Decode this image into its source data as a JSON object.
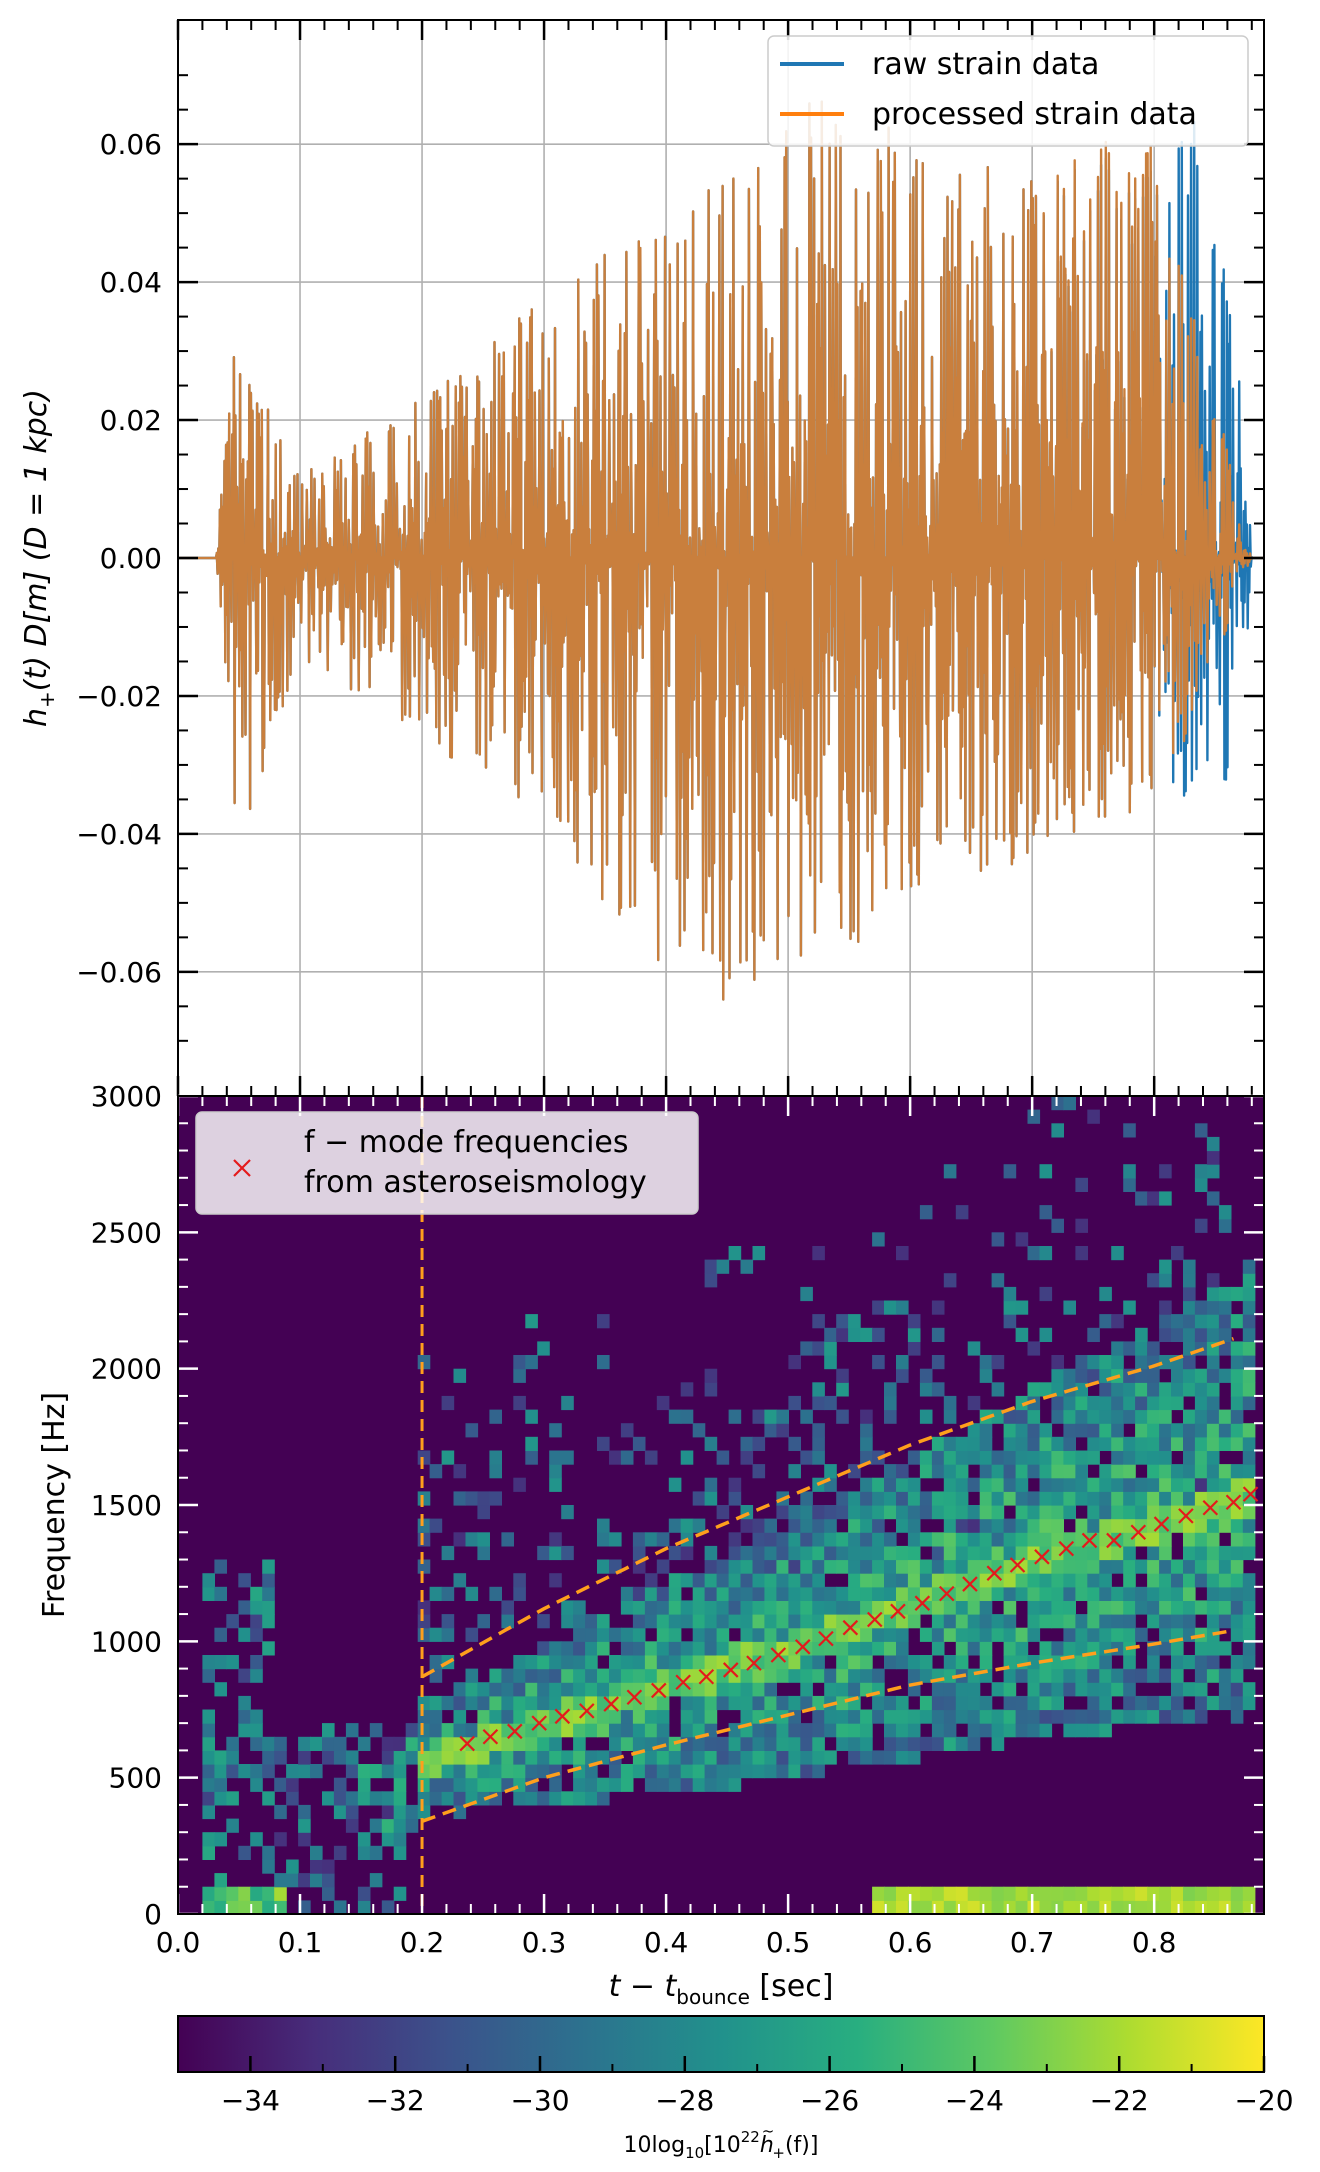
{
  "chart_data": [
    {
      "type": "line",
      "ylabel": "h_+(t) D[m]  (D = 1 kpc)",
      "ylabel_parts": {
        "main": "h",
        "sub": "+",
        "rest1": "(t) D[m]  (D = 1 kpc)"
      },
      "xlim": [
        0.0,
        0.89
      ],
      "ylim": [
        -0.078,
        0.078
      ],
      "yticks": [
        -0.06,
        -0.04,
        -0.02,
        0.0,
        0.02,
        0.04,
        0.06
      ],
      "ytick_labels": [
        "−0.06",
        "−0.04",
        "−0.02",
        "0.00",
        "0.02",
        "0.04",
        "0.06"
      ],
      "grid": true,
      "legend_position": "top-right",
      "series": [
        {
          "name": "raw strain data",
          "color": "#1f77b4",
          "envelope": {
            "t": [
              0.0,
              0.03,
              0.04,
              0.05,
              0.06,
              0.1,
              0.2,
              0.3,
              0.4,
              0.45,
              0.5,
              0.55,
              0.6,
              0.7,
              0.8,
              0.84,
              0.86,
              0.87,
              0.875,
              0.88,
              0.89
            ],
            "upper": [
              0.0,
              0.0,
              0.02,
              0.036,
              0.028,
              0.012,
              0.024,
              0.038,
              0.05,
              0.058,
              0.07,
              0.065,
              0.062,
              0.055,
              0.06,
              0.066,
              0.038,
              0.028,
              0.018,
              0.0,
              0.0
            ],
            "lower": [
              0.0,
              0.0,
              -0.02,
              -0.048,
              -0.036,
              -0.015,
              -0.026,
              -0.04,
              -0.06,
              -0.066,
              -0.06,
              -0.058,
              -0.048,
              -0.044,
              -0.036,
              -0.036,
              -0.032,
              -0.026,
              -0.018,
              0.0,
              0.0
            ]
          }
        },
        {
          "name": "processed strain data",
          "color": "#ff7f0e",
          "envelope": {
            "t": [
              0.0,
              0.03,
              0.04,
              0.05,
              0.06,
              0.1,
              0.2,
              0.3,
              0.4,
              0.45,
              0.5,
              0.55,
              0.6,
              0.7,
              0.8,
              0.82,
              0.84,
              0.86,
              0.87,
              0.88,
              0.89
            ],
            "upper": [
              0.0,
              0.0,
              0.02,
              0.036,
              0.028,
              0.012,
              0.024,
              0.038,
              0.05,
              0.058,
              0.07,
              0.065,
              0.062,
              0.055,
              0.064,
              0.045,
              0.03,
              0.016,
              0.005,
              0.0,
              0.0
            ],
            "lower": [
              0.0,
              0.0,
              -0.02,
              -0.048,
              -0.036,
              -0.015,
              -0.026,
              -0.04,
              -0.06,
              -0.066,
              -0.06,
              -0.058,
              -0.048,
              -0.044,
              -0.036,
              -0.03,
              -0.02,
              -0.01,
              -0.004,
              0.0,
              0.0
            ]
          }
        }
      ]
    },
    {
      "type": "heatmap",
      "xlabel": "t − t_bounce [sec]",
      "xlabel_parts": {
        "main": "t − t",
        "sub": "bounce",
        "rest": " [sec]"
      },
      "ylabel": "Frequency [Hz]",
      "xlim": [
        0.0,
        0.89
      ],
      "ylim": [
        0,
        3000
      ],
      "xticks": [
        0.0,
        0.1,
        0.2,
        0.3,
        0.4,
        0.5,
        0.6,
        0.7,
        0.8
      ],
      "xtick_labels": [
        "0.0",
        "0.1",
        "0.2",
        "0.3",
        "0.4",
        "0.5",
        "0.6",
        "0.7",
        "0.8"
      ],
      "yticks": [
        0,
        500,
        1000,
        1500,
        2000,
        2500,
        3000
      ],
      "ytick_labels": [
        "0",
        "500",
        "1000",
        "1500",
        "2000",
        "2500",
        "3000"
      ],
      "colormap": "viridis",
      "color_range": [
        -35,
        -20
      ],
      "background_level": -35,
      "legend_position": "top-left",
      "legend_label_lines": [
        "f − mode frequencies",
        "from asteroseismology"
      ],
      "bounce_line_t": 0.2,
      "bounce_line_color": "#ff9f1c",
      "upper_band": {
        "t": [
          0.2,
          0.3,
          0.4,
          0.5,
          0.6,
          0.7,
          0.8,
          0.865
        ],
        "f": [
          870,
          1120,
          1340,
          1530,
          1720,
          1880,
          2010,
          2110
        ]
      },
      "lower_band": {
        "t": [
          0.2,
          0.3,
          0.4,
          0.5,
          0.6,
          0.7,
          0.8,
          0.865
        ],
        "f": [
          340,
          500,
          620,
          730,
          840,
          920,
          990,
          1040
        ]
      },
      "fmode_points": {
        "name": "f − mode frequencies from asteroseismology",
        "color": "#e41a1c",
        "t": [
          0.237,
          0.256,
          0.276,
          0.296,
          0.315,
          0.335,
          0.355,
          0.374,
          0.394,
          0.414,
          0.433,
          0.453,
          0.472,
          0.492,
          0.512,
          0.531,
          0.551,
          0.571,
          0.59,
          0.61,
          0.63,
          0.649,
          0.669,
          0.688,
          0.708,
          0.728,
          0.747,
          0.767,
          0.787,
          0.806,
          0.826,
          0.846,
          0.865,
          0.879
        ],
        "f": [
          625,
          650,
          670,
          700,
          725,
          745,
          770,
          795,
          820,
          850,
          870,
          895,
          920,
          950,
          980,
          1010,
          1050,
          1080,
          1110,
          1140,
          1175,
          1210,
          1250,
          1280,
          1310,
          1340,
          1370,
          1370,
          1400,
          1430,
          1460,
          1490,
          1510,
          1540
        ]
      },
      "ridge": {
        "t": [
          0.2,
          0.3,
          0.4,
          0.5,
          0.6,
          0.7,
          0.8,
          0.88
        ],
        "f": [
          560,
          690,
          830,
          960,
          1130,
          1290,
          1420,
          1540
        ]
      },
      "low_freq_band": {
        "t_start": 0.57,
        "t_end": 0.87,
        "f_max": 80,
        "level": -21
      }
    },
    {
      "type": "colorbar",
      "colormap": "viridis",
      "range": [
        -35,
        -20
      ],
      "ticks": [
        -34,
        -32,
        -30,
        -28,
        -26,
        -24,
        -22,
        -20
      ],
      "tick_labels": [
        "−34",
        "−32",
        "−30",
        "−28",
        "−26",
        "−24",
        "−22",
        "−20"
      ],
      "label_parts": {
        "pre": "10log",
        "sub1": "10",
        "mid": "[10",
        "sup": "22",
        "h": "h",
        "tilde": "~",
        "sub2": "+",
        "post": "(f)]"
      }
    }
  ]
}
